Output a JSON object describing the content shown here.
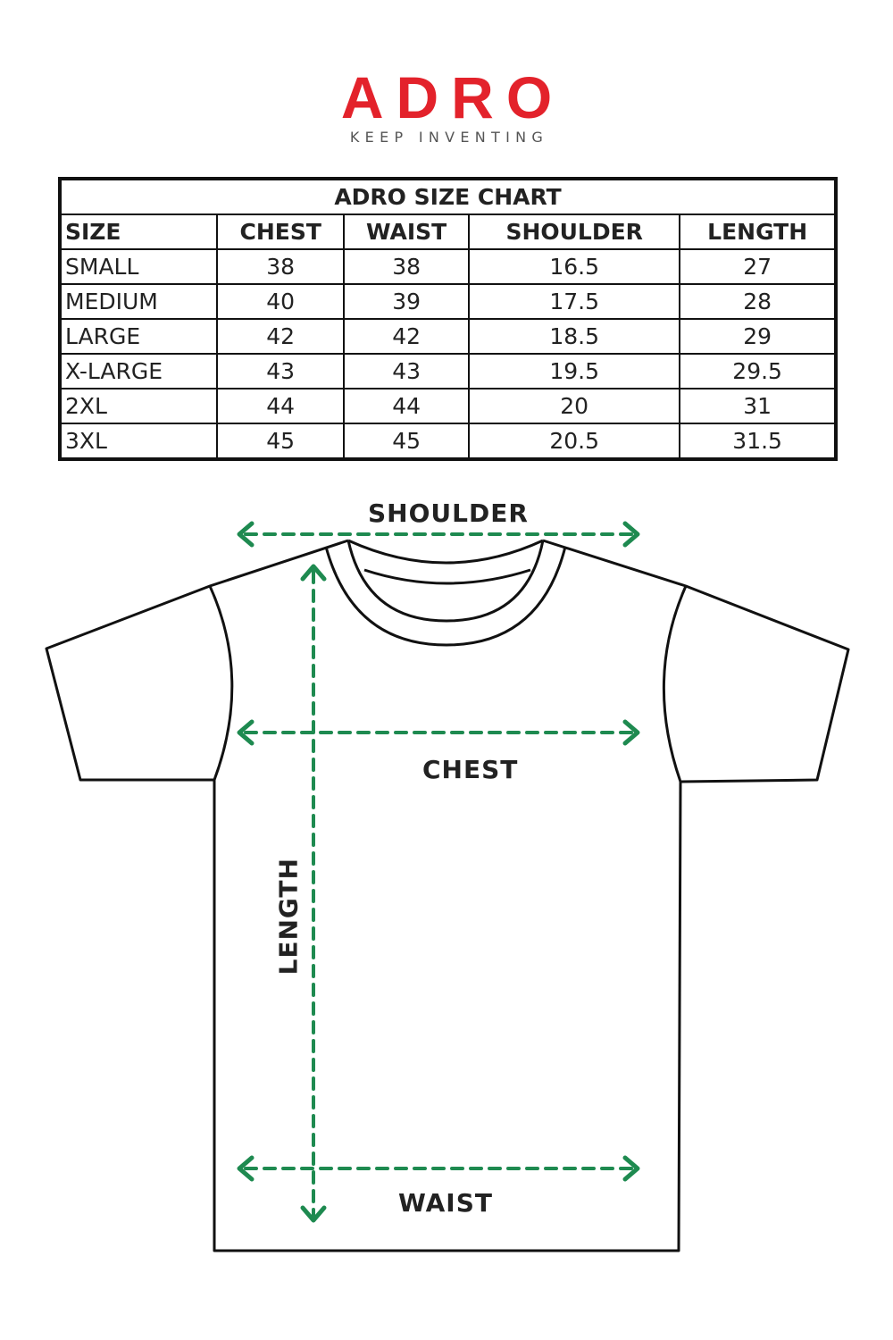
{
  "logo": {
    "brand": "ADRO",
    "tagline": "KEEP INVENTING",
    "color": "#e3222b"
  },
  "table": {
    "title": "ADRO SIZE CHART",
    "headers": [
      "SIZE",
      "CHEST",
      "WAIST",
      "SHOULDER",
      "LENGTH"
    ],
    "rows": [
      [
        "SMALL",
        "38",
        "38",
        "16.5",
        "27"
      ],
      [
        "MEDIUM",
        "40",
        "39",
        "17.5",
        "28"
      ],
      [
        "LARGE",
        "42",
        "42",
        "18.5",
        "29"
      ],
      [
        "X-LARGE",
        "43",
        "43",
        "19.5",
        "29.5"
      ],
      [
        "2XL",
        "44",
        "44",
        "20",
        "31"
      ],
      [
        "3XL",
        "45",
        "45",
        "20.5",
        "31.5"
      ]
    ]
  },
  "diagram": {
    "shoulder": "SHOULDER",
    "chest": "CHEST",
    "waist": "WAIST",
    "length": "LENGTH",
    "arrow_color": "#1e8a50"
  }
}
